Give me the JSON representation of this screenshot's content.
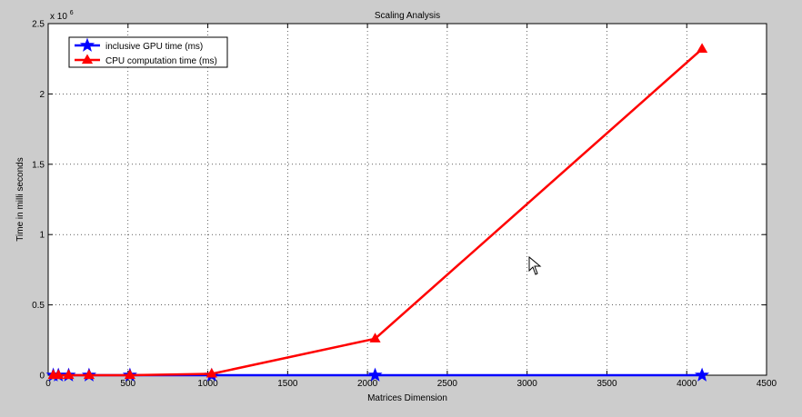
{
  "chart_data": {
    "type": "line",
    "title": "Scaling Analysis",
    "xlabel": "Matrices Dimension",
    "ylabel": "Time in milli seconds",
    "xlim": [
      0,
      4500
    ],
    "ylim": [
      0,
      2.5
    ],
    "y_exponent_label": "x 10",
    "y_exponent_power": "6",
    "x_ticks": [
      0,
      500,
      1000,
      1500,
      2000,
      2500,
      3000,
      3500,
      4000,
      4500
    ],
    "x_tick_labels": [
      "0",
      "500",
      "1000",
      "1500",
      "2000",
      "2500",
      "3000",
      "3500",
      "4000",
      "4500"
    ],
    "y_ticks": [
      0,
      0.5,
      1,
      1.5,
      2,
      2.5
    ],
    "y_tick_labels": [
      "0",
      "0.5",
      "1",
      "1.5",
      "2",
      "2.5"
    ],
    "grid": true,
    "legend_position": "top-left",
    "x": [
      32,
      64,
      128,
      256,
      512,
      1024,
      2048,
      4096
    ],
    "series": [
      {
        "name": "inclusive GPU time (ms)",
        "color": "#0000ff",
        "marker": "star",
        "values": [
          0.0,
          0.0,
          0.0,
          0.0,
          0.0,
          0.0,
          0.0,
          0.0
        ]
      },
      {
        "name": "CPU computation time (ms)",
        "color": "#ff0000",
        "marker": "triangle",
        "values": [
          0.0,
          0.0,
          0.0,
          0.0,
          0.0,
          0.01,
          0.26,
          2.32
        ]
      }
    ]
  }
}
